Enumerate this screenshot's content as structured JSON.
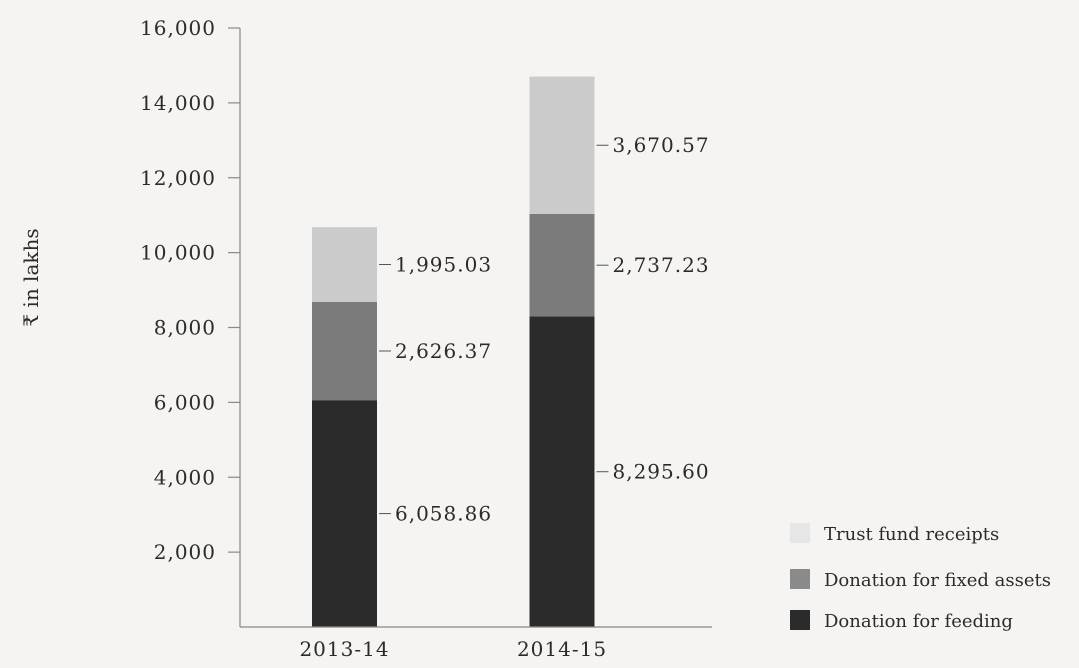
{
  "chart_data": {
    "type": "bar",
    "stacked": true,
    "categories": [
      "2013-14",
      "2014-15"
    ],
    "series": [
      {
        "name": "Donation for feeding",
        "values": [
          6058.86,
          8295.6
        ],
        "labels": [
          "6,058.86",
          "8,295.60"
        ],
        "color": "#2b2b2b"
      },
      {
        "name": "Donation for fixed assets",
        "values": [
          2626.37,
          2737.23
        ],
        "labels": [
          "2,626.37",
          "2,737.23"
        ],
        "color": "#7b7b7b"
      },
      {
        "name": "Trust fund receipts",
        "values": [
          1995.03,
          3670.57
        ],
        "labels": [
          "1,995.03",
          "3,670.57"
        ],
        "color": "#cbcbcb"
      }
    ],
    "legend_order": [
      "Trust fund receipts",
      "Donation for fixed assets",
      "Donation for feeding"
    ],
    "legend_colors": {
      "Trust fund receipts": "#e6e6e6",
      "Donation for fixed assets": "#8a8a8a",
      "Donation for feeding": "#2b2b2b"
    },
    "ylabel": "₹ in lakhs",
    "xlabel": "",
    "ylim": [
      0,
      16000
    ],
    "yticks": [
      2000,
      4000,
      6000,
      8000,
      10000,
      12000,
      14000,
      16000
    ],
    "ytick_labels": [
      "2,000",
      "4,000",
      "6,000",
      "8,000",
      "10,000",
      "12,000",
      "14,000",
      "16,000"
    ],
    "legend_position": "bottom-right",
    "grid": false
  }
}
